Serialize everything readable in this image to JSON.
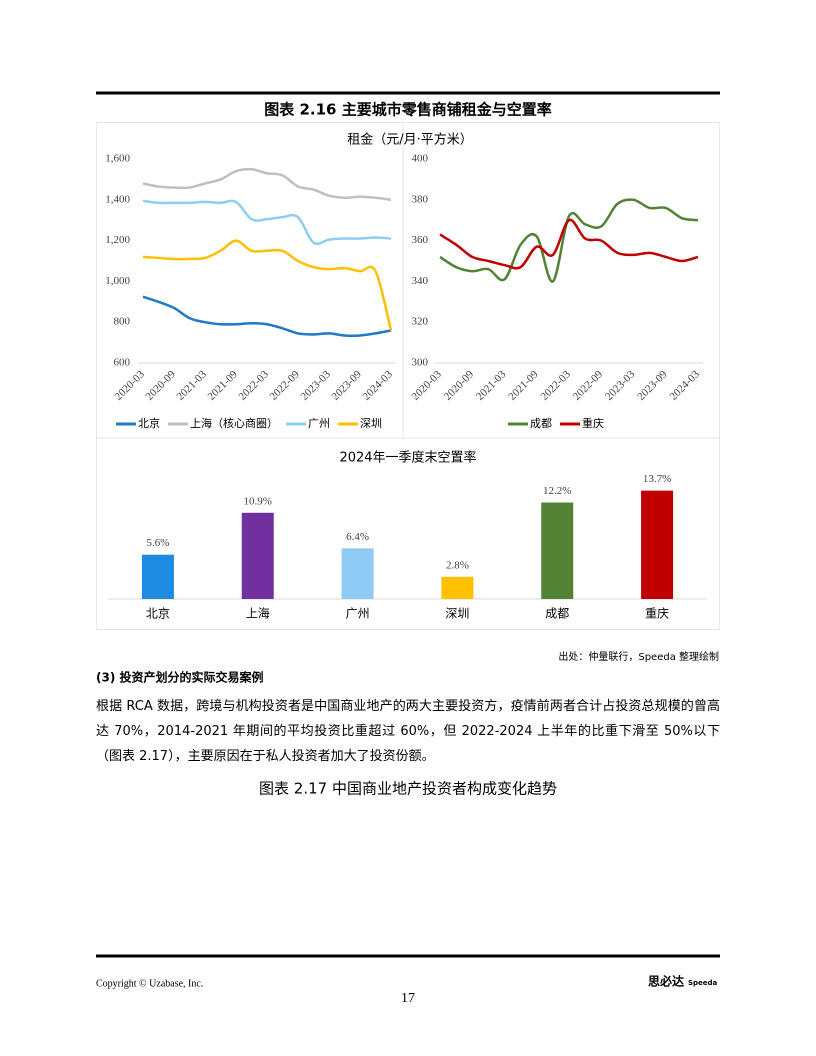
{
  "figure_title": "图表 2.16 主要城市零售商铺租金与空置率",
  "rent_title": "租金（元/月·平方米）",
  "chart_data": [
    {
      "type": "line",
      "categories": [
        "2020-03",
        null,
        "2020-09",
        null,
        "2021-03",
        null,
        "2021-09",
        null,
        "2022-03",
        null,
        "2022-09",
        null,
        "2023-03",
        null,
        "2023-09",
        null,
        "2024-03"
      ],
      "ylim": [
        600,
        1600
      ],
      "yticks": [
        600,
        800,
        {
          "value": 1000,
          "label": "1,000"
        },
        {
          "value": 1200,
          "label": "1,200"
        },
        {
          "value": 1400,
          "label": "1,400"
        },
        {
          "value": 1600,
          "label": "1,600"
        }
      ],
      "grid": false,
      "legend": "bottom",
      "series": [
        {
          "name": "北京",
          "color": "#1f78c8",
          "values": [
            925,
            900,
            870,
            820,
            800,
            790,
            790,
            795,
            790,
            770,
            745,
            740,
            745,
            735,
            735,
            745,
            760
          ]
        },
        {
          "name": "上海（核心商圈）",
          "color": "#bfbfbf",
          "values": [
            1480,
            1465,
            1460,
            1460,
            1480,
            1500,
            1540,
            1550,
            1530,
            1520,
            1465,
            1450,
            1420,
            1410,
            1415,
            1410,
            1400
          ]
        },
        {
          "name": "广州",
          "color": "#8ecdf3",
          "values": [
            1395,
            1385,
            1385,
            1385,
            1390,
            1385,
            1390,
            1305,
            1305,
            1315,
            1315,
            1190,
            1205,
            1210,
            1210,
            1215,
            1210
          ]
        },
        {
          "name": "深圳",
          "color": "#ffc000",
          "values": [
            1120,
            1115,
            1110,
            1110,
            1115,
            1150,
            1200,
            1150,
            1150,
            1150,
            1100,
            1070,
            1060,
            1065,
            1050,
            1050,
            760
          ]
        }
      ]
    },
    {
      "type": "line",
      "categories": [
        "2020-03",
        null,
        "2020-09",
        null,
        "2021-03",
        null,
        "2021-09",
        null,
        "2022-03",
        null,
        "2022-09",
        null,
        "2023-03",
        null,
        "2023-09",
        null,
        "2024-03"
      ],
      "ylim": [
        300,
        400
      ],
      "yticks": [
        300,
        320,
        340,
        360,
        380,
        400
      ],
      "grid": false,
      "legend": "bottom",
      "series": [
        {
          "name": "成都",
          "color": "#548235",
          "values": [
            352,
            347,
            345,
            346,
            341,
            358,
            362,
            340,
            372,
            368,
            367,
            378,
            380,
            376,
            376,
            371,
            370
          ]
        },
        {
          "name": "重庆",
          "color": "#c00000",
          "values": [
            363,
            358,
            352,
            350,
            348,
            347,
            357,
            353,
            370,
            361,
            360,
            354,
            353,
            354,
            352,
            350,
            352
          ]
        }
      ]
    },
    {
      "type": "bar",
      "title": "2024年一季度末空置率",
      "categories": [
        "北京",
        "上海",
        "广州",
        "深圳",
        "成都",
        "重庆"
      ],
      "values": [
        5.6,
        10.9,
        6.4,
        2.8,
        12.2,
        13.7
      ],
      "value_labels": [
        "5.6%",
        "10.9%",
        "6.4%",
        "2.8%",
        "12.2%",
        "13.7%"
      ],
      "colors": [
        "#1f8be0",
        "#7030a0",
        "#8fcaf5",
        "#ffc000",
        "#548235",
        "#c00000"
      ]
    }
  ],
  "source": "出处：仲量联行，Speeda 整理绘制",
  "heading": "(3) 投资产划分的实际交易案例",
  "paragraph": "根据 RCA 数据，跨境与机构投资者是中国商业地产的两大主要投资方，疫情前两者合计占投资总规模的曾高达 70%，2014-2021 年期间的平均投资比重超过 60%，但 2022-2024 上半年的比重下滑至 50%以下（图表 2.17），主要原因在于私人投资者加大了投资份额。",
  "figure2_title": "图表 2.17 中国商业地产投资者构成变化趋势",
  "footer": {
    "copyright": "Copyright © Uzabase, Inc.",
    "page": "17",
    "brand": "思必达",
    "brand_sub": "Speeda"
  }
}
